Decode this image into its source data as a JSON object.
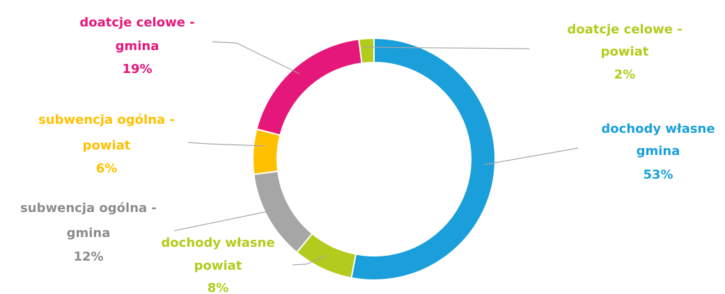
{
  "chart_data": {
    "type": "donut",
    "categories": [
      "dochody własne\ngmina",
      "dochody własne\npowiat",
      "subwencja ogólna -\ngmina",
      "subwencja ogólna -\npowiat",
      "doatcje celowe -\ngmina",
      "doatcje celowe -\npowiat"
    ],
    "values": [
      53,
      8,
      12,
      6,
      19,
      2
    ],
    "value_labels": [
      "53%",
      "8%",
      "12%",
      "6%",
      "19%",
      "2%"
    ],
    "colors": [
      "#1a9fdb",
      "#b2cb1c",
      "#a6a6a6",
      "#ffc000",
      "#e6177a",
      "#b2cb1c"
    ]
  }
}
